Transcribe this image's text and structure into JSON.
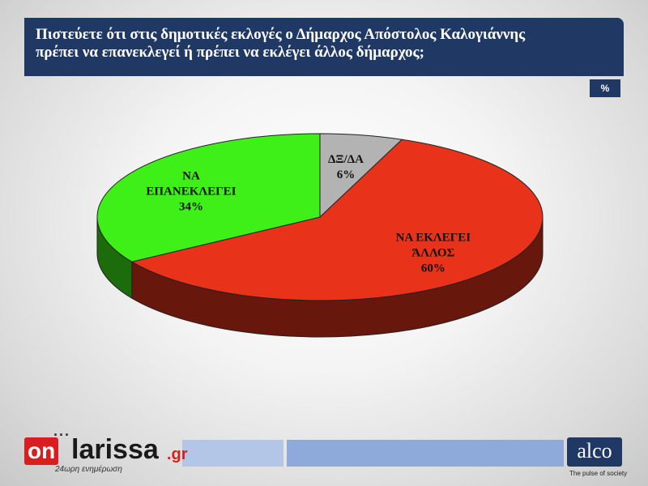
{
  "title": {
    "line1": "Πιστεύετε ότι στις δημοτικές εκλογές ο Δήμαρχος Απόστολος Καλογιάννης",
    "line2": "πρέπει να επανεκλεγεί ή πρέπει να εκλέγει άλλος δήμαρχος;"
  },
  "unit_badge": "%",
  "colors": {
    "header": "#1f3864",
    "slice_other": "#e8331a",
    "slice_reelect": "#3fef18",
    "slice_dk": "#b3b3b3",
    "footer_light": "#b4c6e7",
    "footer_mid": "#8eaadb"
  },
  "chart_data": {
    "type": "pie",
    "title": "Πιστεύετε ότι στις δημοτικές εκλογές ο Δήμαρχος Απόστολος Καλογιάννης πρέπει να επανεκλεγεί ή πρέπει να εκλέγει άλλος δήμαρχος;",
    "unit": "%",
    "slices": [
      {
        "label_lines": [
          "ΔΞ/ΔΑ"
        ],
        "value": 6,
        "value_label": "6%",
        "color": "#b3b3b3"
      },
      {
        "label_lines": [
          "ΝΑ ΕΚΛΕΓΕΙ",
          "ΆΛΛΟΣ"
        ],
        "value": 60,
        "value_label": "60%",
        "color": "#e8331a"
      },
      {
        "label_lines": [
          "ΝΑ",
          "ΕΠΑΝΕΚΛΕΓΕΙ"
        ],
        "value": 34,
        "value_label": "34%",
        "color": "#3fef18"
      }
    ]
  },
  "footer": {
    "onlarissa": {
      "dots": "...",
      "on": "on",
      "larissa": "larissa",
      "gr": ".gr",
      "tagline": "24ωρη ενημέρωση"
    },
    "alco": {
      "name": "alco",
      "tagline": "The pulse of society"
    }
  }
}
